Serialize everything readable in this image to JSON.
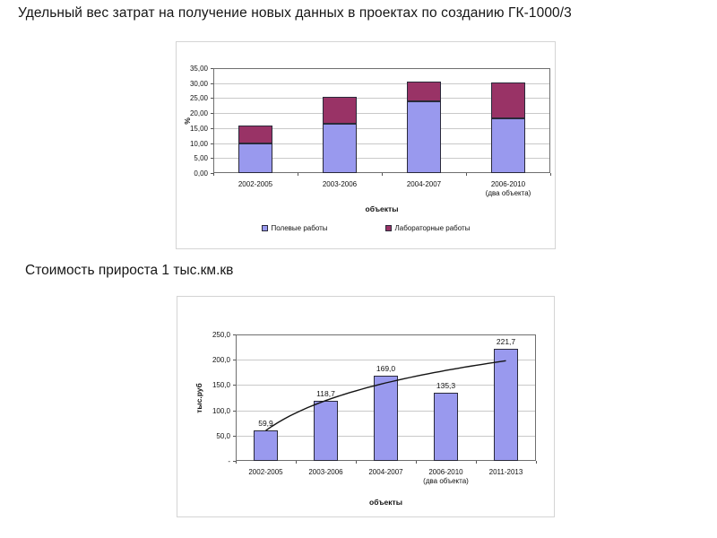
{
  "page": {
    "title": "Удельный вес затрат на получение новых данных в проектах по созданию ГК-1000/3",
    "subtitle": "Стоимость прироста 1 тыс.км.кв"
  },
  "colors": {
    "series_field": "#9999ee",
    "series_lab": "#993366",
    "bar_fill": "#9999ee",
    "bar_border": "#2a2a3a",
    "gridline": "#c9c9c9",
    "axis": "#555555",
    "plot_border": "#6f6f6f",
    "panel_border": "#d4d4d4",
    "trendline": "#141414"
  },
  "chart_data": [
    {
      "type": "bar",
      "stacked": true,
      "title": "",
      "categories": [
        "2002-2005",
        "2003-2006",
        "2004-2007",
        "2006-2010\n(два объекта)"
      ],
      "series": [
        {
          "name": "Полевые работы",
          "color": "#9999ee",
          "values": [
            10.0,
            16.4,
            23.9,
            18.1
          ]
        },
        {
          "name": "Лабораторные работы",
          "color": "#993366",
          "values": [
            5.8,
            8.9,
            6.7,
            12.1
          ]
        }
      ],
      "xlabel": "объекты",
      "ylabel": "%",
      "ylim": [
        0,
        35
      ],
      "ytick_step": 5,
      "ytick_labels": [
        "0,00",
        "5,00",
        "10,00",
        "15,00",
        "20,00",
        "25,00",
        "30,00",
        "35,00"
      ],
      "grid": true,
      "legend_position": "bottom"
    },
    {
      "type": "bar",
      "stacked": false,
      "title": "",
      "categories": [
        "2002-2005",
        "2003-2006",
        "2004-2007",
        "2006-2010\n(два объекта)",
        "2011-2013"
      ],
      "values": [
        59.9,
        118.7,
        169.0,
        135.3,
        221.7
      ],
      "data_labels": [
        "59,9",
        "118,7",
        "169,0",
        "135,3",
        "221,7"
      ],
      "xlabel": "объекты",
      "ylabel": "тыс.руб",
      "ylim": [
        0,
        250
      ],
      "ytick_step": 50,
      "ytick_labels": [
        "-",
        "50,0",
        "100,0",
        "150,0",
        "200,0",
        "250,0"
      ],
      "grid": true,
      "legend_position": "none",
      "trendline": {
        "type": "logarithmic",
        "values_at_categories": [
          59.9,
          119,
          154,
          179,
          198
        ]
      }
    }
  ]
}
